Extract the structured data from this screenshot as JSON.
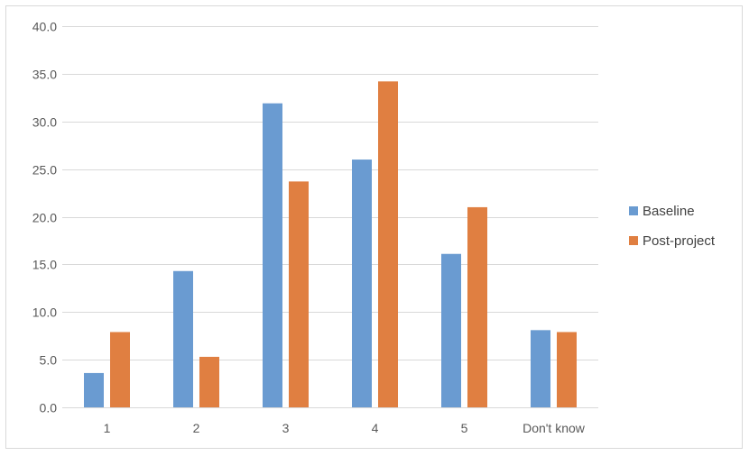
{
  "chart_data": {
    "type": "bar",
    "categories": [
      "1",
      "2",
      "3",
      "4",
      "5",
      "Don't know"
    ],
    "series": [
      {
        "name": "Baseline",
        "color": "#6a9bd1",
        "values": [
          3.6,
          14.3,
          31.9,
          26.0,
          16.1,
          8.1
        ]
      },
      {
        "name": "Post-project",
        "color": "#e07f41",
        "values": [
          7.9,
          5.3,
          23.7,
          34.2,
          21.0,
          7.9
        ]
      }
    ],
    "ylim": [
      0,
      40
    ],
    "yticks": [
      "0.0",
      "5.0",
      "10.0",
      "15.0",
      "20.0",
      "25.0",
      "30.0",
      "35.0",
      "40.0"
    ],
    "grid": true,
    "legend_position": "right",
    "title": "",
    "xlabel": "",
    "ylabel": ""
  }
}
